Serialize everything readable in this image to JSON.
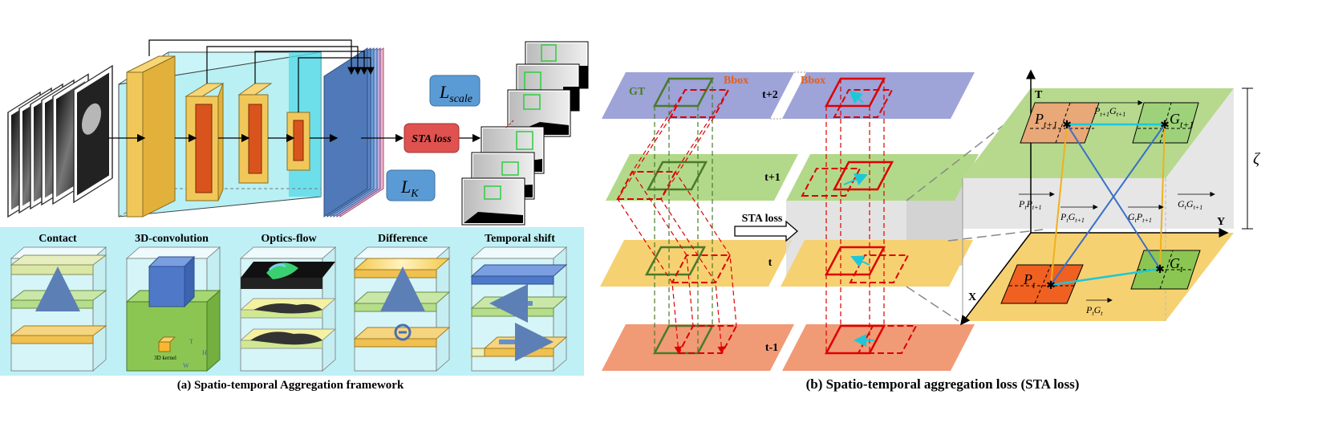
{
  "panel_a": {
    "caption": "(a) Spatio-temporal Aggregation framework",
    "loss_scale": "L",
    "loss_scale_sub": "scale",
    "loss_k": "L",
    "loss_k_sub": "K",
    "sta_loss": "STA loss",
    "modules": [
      {
        "title": "Contact"
      },
      {
        "title": "3D-convolution",
        "kernel_label": "3D kernel",
        "dims": [
          "T",
          "H",
          "W"
        ]
      },
      {
        "title": "Optics-flow"
      },
      {
        "title": "Difference"
      },
      {
        "title": "Temporal shift"
      }
    ]
  },
  "panel_b": {
    "caption": "(b) Spatio-temporal aggregation loss (STA loss)",
    "gt_label": "GT",
    "bbox_label": "Bbox",
    "bbox_label_right": "Bbox",
    "frames": [
      "t+2",
      "t+1",
      "t",
      "t-1"
    ],
    "sta_loss_arrow": "STA loss",
    "axes": {
      "t": "T",
      "x": "X",
      "y": "Y",
      "zeta": "ζ"
    },
    "points": {
      "p_t1": {
        "base": "P",
        "sub": "t+1"
      },
      "g_t1": {
        "base": "G",
        "sub": "t+1"
      },
      "p_t": {
        "base": "P",
        "sub": "t"
      },
      "g_t": {
        "base": "G",
        "sub": "t"
      }
    },
    "vectors": {
      "pt1_gt1": {
        "a": "P",
        "as": "t+1",
        "b": "G",
        "bs": "t+1"
      },
      "pt_pt1": {
        "a": "P",
        "as": "t",
        "b": "P",
        "bs": "t+1"
      },
      "pt_gt1": {
        "a": "P",
        "as": "t",
        "b": "G",
        "bs": "t+1"
      },
      "gt_pt1": {
        "a": "G",
        "as": "t",
        "b": "P",
        "bs": "t+1"
      },
      "gt_gt1": {
        "a": "G",
        "as": "t",
        "b": "G",
        "bs": "t+1"
      },
      "pt_gt": {
        "a": "P",
        "as": "t",
        "b": "G",
        "bs": "t"
      }
    }
  }
}
